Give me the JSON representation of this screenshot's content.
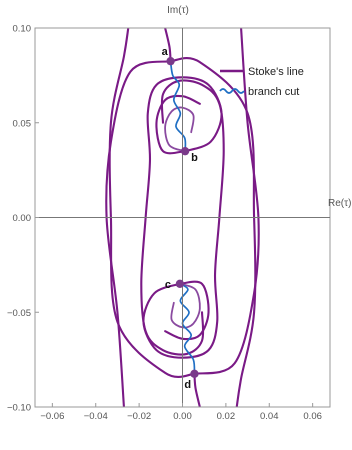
{
  "chart_data": {
    "type": "line",
    "title": "",
    "xlabel": "Re(τ)",
    "ylabel": "Im(τ)",
    "xlim": [
      -0.068,
      0.068
    ],
    "ylim": [
      -0.1,
      0.1
    ],
    "xticks": [
      -0.06,
      -0.04,
      -0.02,
      0.0,
      0.02,
      0.04,
      0.06
    ],
    "xtick_labels": [
      "−0.06",
      "−0.04",
      "−0.02",
      "0.00",
      "0.02",
      "0.04",
      "0.06"
    ],
    "yticks": [
      -0.1,
      -0.05,
      0.0,
      0.05,
      0.1
    ],
    "ytick_labels": [
      "−0.10",
      "−0.05",
      "0.00",
      "0.05",
      "0.10"
    ],
    "legend": {
      "position": "top-right",
      "entries": [
        {
          "label": "Stoke's line",
          "color": "#7a1a86"
        },
        {
          "label": "branch cut",
          "color": "#1f6fc4"
        }
      ]
    },
    "colors": {
      "stokes": "#7a1a86",
      "stokes_inner": "#8a4aa0",
      "branch": "#1f6fc4",
      "point": "#7a3a8a",
      "axis": "#777777"
    },
    "points": [
      {
        "label": "a",
        "x": -0.0055,
        "y": 0.0825
      },
      {
        "label": "b",
        "x": 0.0012,
        "y": 0.035
      },
      {
        "label": "c",
        "x": -0.0012,
        "y": -0.035
      },
      {
        "label": "d",
        "x": 0.0055,
        "y": -0.0825
      }
    ],
    "series": [
      {
        "name": "Stoke's line",
        "kind": "stokes",
        "points": [
          [
            -0.0055,
            0.0825
          ],
          [
            -0.024,
            0.077
          ],
          [
            -0.033,
            0.04
          ],
          [
            -0.035,
            0.0
          ],
          [
            -0.03,
            -0.05
          ],
          [
            -0.027,
            -0.1
          ]
        ]
      },
      {
        "name": "Stoke's line",
        "kind": "stokes",
        "points": [
          [
            -0.0055,
            0.0825
          ],
          [
            0.008,
            0.082
          ],
          [
            0.03,
            0.055
          ],
          [
            0.033,
            0.0
          ],
          [
            0.033,
            -0.05
          ],
          [
            0.027,
            -0.085
          ],
          [
            0.025,
            -0.1
          ]
        ]
      },
      {
        "name": "Stoke's line",
        "kind": "stokes",
        "points": [
          [
            -0.0055,
            0.0825
          ],
          [
            -0.006,
            0.09
          ],
          [
            -0.008,
            0.1
          ]
        ]
      },
      {
        "name": "Stoke's line",
        "kind": "stokes",
        "points": [
          [
            0.0055,
            -0.0825
          ],
          [
            -0.008,
            -0.082
          ],
          [
            -0.03,
            -0.055
          ],
          [
            -0.033,
            0.0
          ],
          [
            -0.033,
            0.05
          ],
          [
            -0.027,
            0.085
          ],
          [
            -0.025,
            0.1
          ]
        ]
      },
      {
        "name": "Stoke's line",
        "kind": "stokes",
        "points": [
          [
            0.0055,
            -0.0825
          ],
          [
            0.024,
            -0.077
          ],
          [
            0.033,
            -0.04
          ],
          [
            0.035,
            0.0
          ],
          [
            0.03,
            0.05
          ],
          [
            0.027,
            0.1
          ]
        ]
      },
      {
        "name": "Stoke's line",
        "kind": "stokes",
        "points": [
          [
            0.0055,
            -0.0825
          ],
          [
            0.006,
            -0.09
          ],
          [
            0.008,
            -0.1
          ]
        ]
      },
      {
        "name": "Stoke's line",
        "kind": "stokes",
        "points": [
          [
            0.0012,
            0.035
          ],
          [
            0.013,
            0.04
          ],
          [
            0.018,
            0.055
          ],
          [
            0.012,
            0.07
          ],
          [
            0.0,
            0.074
          ],
          [
            -0.012,
            0.07
          ],
          [
            -0.016,
            0.055
          ],
          [
            -0.015,
            0.03
          ],
          [
            -0.017,
            0.0
          ],
          [
            -0.019,
            -0.035
          ],
          [
            -0.017,
            -0.06
          ],
          [
            -0.009,
            -0.07
          ],
          [
            0.002,
            -0.072
          ],
          [
            0.009,
            -0.065
          ],
          [
            0.009,
            -0.05
          ]
        ]
      },
      {
        "name": "Stoke's line",
        "kind": "stokes",
        "points": [
          [
            0.0012,
            0.035
          ],
          [
            -0.009,
            0.035
          ],
          [
            -0.012,
            0.05
          ],
          [
            -0.008,
            0.062
          ],
          [
            0.0,
            0.064
          ],
          [
            0.008,
            0.06
          ]
        ]
      },
      {
        "name": "Stoke's line",
        "kind": "stokes",
        "points": [
          [
            -0.0012,
            -0.035
          ],
          [
            -0.013,
            -0.04
          ],
          [
            -0.018,
            -0.055
          ],
          [
            -0.012,
            -0.07
          ],
          [
            0.0,
            -0.074
          ],
          [
            0.012,
            -0.07
          ],
          [
            0.016,
            -0.055
          ],
          [
            0.015,
            -0.03
          ],
          [
            0.017,
            0.0
          ],
          [
            0.019,
            0.035
          ],
          [
            0.017,
            0.06
          ],
          [
            0.009,
            0.07
          ],
          [
            -0.002,
            0.072
          ],
          [
            -0.009,
            0.065
          ],
          [
            -0.009,
            0.05
          ]
        ]
      },
      {
        "name": "Stoke's line",
        "kind": "stokes",
        "points": [
          [
            -0.0012,
            -0.035
          ],
          [
            0.009,
            -0.035
          ],
          [
            0.012,
            -0.05
          ],
          [
            0.008,
            -0.062
          ],
          [
            0.0,
            -0.064
          ],
          [
            -0.008,
            -0.06
          ]
        ]
      },
      {
        "name": "Stoke's line",
        "kind": "stokes_inner",
        "points": [
          [
            0.0012,
            0.035
          ],
          [
            -0.006,
            0.038
          ],
          [
            -0.008,
            0.048
          ],
          [
            -0.005,
            0.056
          ],
          [
            0.0,
            0.058
          ],
          [
            0.005,
            0.054
          ],
          [
            0.004,
            0.045
          ]
        ]
      },
      {
        "name": "Stoke's line",
        "kind": "stokes_inner",
        "points": [
          [
            -0.0012,
            -0.035
          ],
          [
            0.006,
            -0.038
          ],
          [
            0.008,
            -0.048
          ],
          [
            0.005,
            -0.056
          ],
          [
            0.0,
            -0.058
          ],
          [
            -0.005,
            -0.054
          ],
          [
            -0.004,
            -0.045
          ]
        ]
      },
      {
        "name": "branch cut",
        "kind": "branch",
        "points": [
          [
            -0.0055,
            0.0825
          ],
          [
            -0.0045,
            0.075
          ],
          [
            -0.0015,
            0.07
          ],
          [
            -0.004,
            0.062
          ],
          [
            -0.001,
            0.055
          ],
          [
            -0.003,
            0.048
          ],
          [
            0.001,
            0.042
          ],
          [
            0.0012,
            0.035
          ]
        ]
      },
      {
        "name": "branch cut",
        "kind": "branch",
        "points": [
          [
            -0.0012,
            -0.035
          ],
          [
            0.0025,
            -0.038
          ],
          [
            -0.001,
            -0.044
          ],
          [
            0.003,
            -0.05
          ],
          [
            0.0,
            -0.056
          ],
          [
            0.004,
            -0.062
          ],
          [
            0.001,
            -0.068
          ],
          [
            0.005,
            -0.075
          ],
          [
            0.0055,
            -0.0825
          ]
        ]
      }
    ]
  }
}
